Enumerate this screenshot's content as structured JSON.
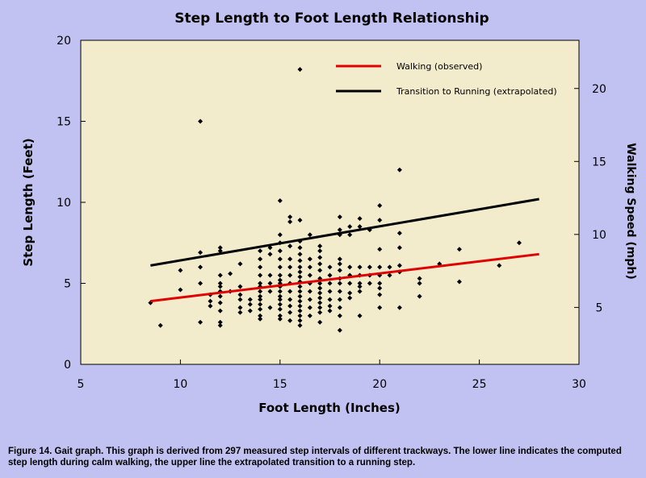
{
  "colors": {
    "page_bg": "#c2c2f2",
    "plot_bg": "#f2ebcc",
    "walking_line": "#e00000",
    "running_line": "#000000",
    "points": "#000000"
  },
  "caption": "Figure 14. Gait graph. This graph is derived from 297 measured step intervals of different trackways. The lower line indicates the computed step length during calm walking, the upper line the extrapolated transition to a running step.",
  "chart_data": {
    "type": "scatter",
    "title": "Step Length to Foot Length Relationship",
    "xlabel": "Foot Length (Inches)",
    "ylabel": "Step Length (Feet)",
    "y2label": "Walking Speed (mph)",
    "xlim": [
      5,
      30
    ],
    "ylim": [
      0,
      20
    ],
    "y2lim": [
      1.1,
      23.3
    ],
    "x_ticks": [
      5,
      10,
      15,
      20,
      25,
      30
    ],
    "y_ticks": [
      0,
      5,
      10,
      15,
      20
    ],
    "y2_ticks": [
      5,
      10,
      15,
      20
    ],
    "grid": false,
    "legend_position": "top-right",
    "lines": [
      {
        "name": "Walking (observed)",
        "color": "#e00000",
        "x": [
          8.5,
          28
        ],
        "y": [
          3.9,
          6.8
        ]
      },
      {
        "name": "Transition to Running (extrapolated)",
        "color": "#000000",
        "x": [
          8.5,
          28
        ],
        "y": [
          6.1,
          10.2
        ]
      }
    ],
    "points": [
      [
        8.5,
        3.8
      ],
      [
        9,
        2.4
      ],
      [
        10,
        4.6
      ],
      [
        10,
        5.8
      ],
      [
        11,
        15.0
      ],
      [
        11,
        6.9
      ],
      [
        11,
        6.0
      ],
      [
        11,
        5.0
      ],
      [
        11,
        2.6
      ],
      [
        11.5,
        4.3
      ],
      [
        11.5,
        3.9
      ],
      [
        11.5,
        3.6
      ],
      [
        12,
        7.2
      ],
      [
        12,
        7.0
      ],
      [
        12,
        5.5
      ],
      [
        12,
        5.0
      ],
      [
        12,
        4.8
      ],
      [
        12,
        4.5
      ],
      [
        12,
        4.2
      ],
      [
        12,
        3.8
      ],
      [
        12,
        3.3
      ],
      [
        12,
        2.6
      ],
      [
        12,
        2.4
      ],
      [
        12.5,
        5.6
      ],
      [
        12.5,
        4.5
      ],
      [
        13,
        6.2
      ],
      [
        13,
        4.8
      ],
      [
        13,
        4.3
      ],
      [
        13,
        4.0
      ],
      [
        13,
        3.5
      ],
      [
        13,
        3.2
      ],
      [
        13.5,
        4.0
      ],
      [
        13.5,
        3.7
      ],
      [
        13.5,
        3.3
      ],
      [
        14,
        7.0
      ],
      [
        14,
        6.5
      ],
      [
        14,
        6.0
      ],
      [
        14,
        5.5
      ],
      [
        14,
        5.0
      ],
      [
        14,
        4.8
      ],
      [
        14,
        4.5
      ],
      [
        14,
        4.2
      ],
      [
        14,
        4.0
      ],
      [
        14,
        3.7
      ],
      [
        14,
        3.4
      ],
      [
        14,
        3.0
      ],
      [
        14,
        2.8
      ],
      [
        14.5,
        7.2
      ],
      [
        14.5,
        6.8
      ],
      [
        14.5,
        5.5
      ],
      [
        14.5,
        5.0
      ],
      [
        14.5,
        4.5
      ],
      [
        14.5,
        3.5
      ],
      [
        15,
        10.1
      ],
      [
        15,
        8.0
      ],
      [
        15,
        7.5
      ],
      [
        15,
        7.0
      ],
      [
        15,
        6.5
      ],
      [
        15,
        6.0
      ],
      [
        15,
        5.5
      ],
      [
        15,
        5.2
      ],
      [
        15,
        5.0
      ],
      [
        15,
        4.8
      ],
      [
        15,
        4.5
      ],
      [
        15,
        4.2
      ],
      [
        15,
        4.0
      ],
      [
        15,
        3.7
      ],
      [
        15,
        3.4
      ],
      [
        15,
        3.0
      ],
      [
        15,
        2.8
      ],
      [
        15.5,
        9.1
      ],
      [
        15.5,
        8.8
      ],
      [
        15.5,
        7.3
      ],
      [
        15.5,
        6.5
      ],
      [
        15.5,
        6.0
      ],
      [
        15.5,
        5.5
      ],
      [
        15.5,
        5.0
      ],
      [
        15.5,
        4.5
      ],
      [
        15.5,
        4.0
      ],
      [
        15.5,
        3.6
      ],
      [
        15.5,
        3.2
      ],
      [
        15.5,
        2.7
      ],
      [
        16,
        18.2
      ],
      [
        16,
        8.9
      ],
      [
        16,
        7.6
      ],
      [
        16,
        7.2
      ],
      [
        16,
        6.8
      ],
      [
        16,
        6.4
      ],
      [
        16,
        6.0
      ],
      [
        16,
        5.7
      ],
      [
        16,
        5.4
      ],
      [
        16,
        5.1
      ],
      [
        16,
        4.8
      ],
      [
        16,
        4.5
      ],
      [
        16,
        4.2
      ],
      [
        16,
        3.9
      ],
      [
        16,
        3.6
      ],
      [
        16,
        3.3
      ],
      [
        16,
        3.0
      ],
      [
        16,
        2.7
      ],
      [
        16,
        2.4
      ],
      [
        16.5,
        8.0
      ],
      [
        16.5,
        6.5
      ],
      [
        16.5,
        6.0
      ],
      [
        16.5,
        5.5
      ],
      [
        16.5,
        5.0
      ],
      [
        16.5,
        4.5
      ],
      [
        16.5,
        4.0
      ],
      [
        16.5,
        3.5
      ],
      [
        16.5,
        3.0
      ],
      [
        17,
        7.3
      ],
      [
        17,
        7.0
      ],
      [
        17,
        6.6
      ],
      [
        17,
        6.2
      ],
      [
        17,
        5.8
      ],
      [
        17,
        5.3
      ],
      [
        17,
        5.0
      ],
      [
        17,
        4.7
      ],
      [
        17,
        4.4
      ],
      [
        17,
        4.1
      ],
      [
        17,
        3.8
      ],
      [
        17,
        3.5
      ],
      [
        17,
        3.2
      ],
      [
        17,
        2.6
      ],
      [
        17.5,
        6.0
      ],
      [
        17.5,
        5.5
      ],
      [
        17.5,
        5.0
      ],
      [
        17.5,
        4.5
      ],
      [
        17.5,
        4.0
      ],
      [
        17.5,
        3.6
      ],
      [
        17.5,
        3.3
      ],
      [
        18,
        9.1
      ],
      [
        18,
        8.3
      ],
      [
        18,
        8.0
      ],
      [
        18,
        6.5
      ],
      [
        18,
        6.2
      ],
      [
        18,
        5.8
      ],
      [
        18,
        5.3
      ],
      [
        18,
        5.0
      ],
      [
        18,
        4.5
      ],
      [
        18,
        4.0
      ],
      [
        18,
        3.5
      ],
      [
        18,
        3.0
      ],
      [
        18,
        2.1
      ],
      [
        18.5,
        8.5
      ],
      [
        18.5,
        8.0
      ],
      [
        18.5,
        6.0
      ],
      [
        18.5,
        5.5
      ],
      [
        18.5,
        5.0
      ],
      [
        18.5,
        4.4
      ],
      [
        18.5,
        4.1
      ],
      [
        19,
        9.0
      ],
      [
        19,
        8.5
      ],
      [
        19,
        6.0
      ],
      [
        19,
        5.5
      ],
      [
        19,
        5.0
      ],
      [
        19,
        4.8
      ],
      [
        19,
        4.5
      ],
      [
        19,
        3.0
      ],
      [
        19.5,
        8.3
      ],
      [
        19.5,
        6.0
      ],
      [
        19.5,
        5.5
      ],
      [
        19.5,
        5.0
      ],
      [
        20,
        9.8
      ],
      [
        20,
        8.9
      ],
      [
        20,
        7.1
      ],
      [
        20,
        6.0
      ],
      [
        20,
        5.5
      ],
      [
        20,
        5.0
      ],
      [
        20,
        4.7
      ],
      [
        20,
        4.3
      ],
      [
        20,
        3.5
      ],
      [
        20.5,
        6.0
      ],
      [
        20.5,
        5.5
      ],
      [
        21,
        12.0
      ],
      [
        21,
        8.1
      ],
      [
        21,
        7.2
      ],
      [
        21,
        6.1
      ],
      [
        21,
        5.7
      ],
      [
        21,
        3.5
      ],
      [
        22,
        5.3
      ],
      [
        22,
        5.0
      ],
      [
        22,
        4.2
      ],
      [
        23,
        6.2
      ],
      [
        24,
        7.1
      ],
      [
        24,
        5.1
      ],
      [
        26,
        6.1
      ],
      [
        27,
        7.5
      ]
    ]
  }
}
